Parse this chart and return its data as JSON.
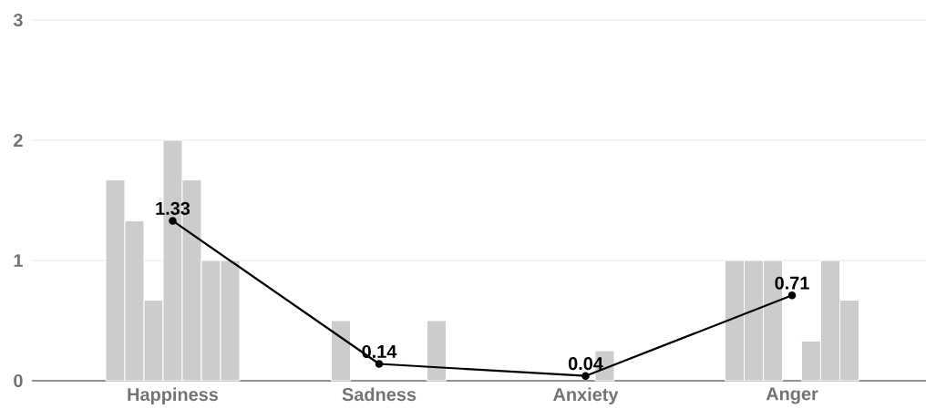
{
  "chart_data": {
    "type": "bar",
    "categories": [
      "Happiness",
      "Sadness",
      "Anxiety",
      "Anger"
    ],
    "ylim": [
      0,
      3
    ],
    "yticks": [
      0,
      1,
      2,
      3
    ],
    "grid": "y",
    "series": [
      {
        "color": "#cccccc",
        "values": [
          1.67,
          null,
          null,
          1
        ]
      },
      {
        "color": "#cccccc",
        "values": [
          1.33,
          0.5,
          null,
          1
        ]
      },
      {
        "color": "#cccccc",
        "values": [
          0.67,
          null,
          null,
          1
        ]
      },
      {
        "color": "#cccccc",
        "values": [
          2,
          null,
          null,
          null
        ]
      },
      {
        "color": "#cccccc",
        "values": [
          1.67,
          null,
          0.25,
          0.33
        ]
      },
      {
        "color": "#cccccc",
        "values": [
          1,
          null,
          null,
          1
        ]
      },
      {
        "color": "#cccccc",
        "values": [
          1,
          0.5,
          null,
          0.67
        ]
      },
      {
        "type": "line",
        "color": "#000000",
        "marker": "circle",
        "values": [
          1.33,
          0.14,
          0.04,
          0.71
        ],
        "value_labels": [
          "1.33",
          "0.14",
          "0.04",
          "0.71"
        ]
      }
    ]
  }
}
